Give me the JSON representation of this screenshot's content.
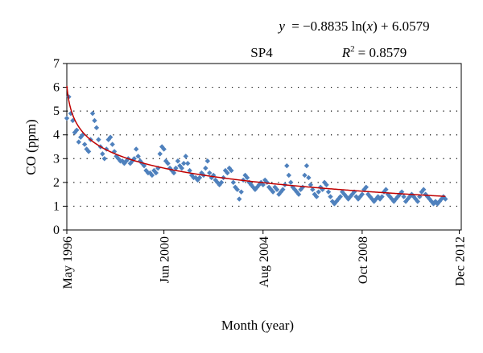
{
  "chart_data": {
    "type": "scatter",
    "station_label": "SP4",
    "equation": {
      "lhs": "y",
      "rhs_prefix": "= −0.8835 ln(",
      "variable": "x",
      "rhs_suffix": ") + 6.0579"
    },
    "r_squared": {
      "symbol": "R",
      "exponent": "2",
      "value_text": "= 0.8579"
    },
    "xlabel": "Month (year)",
    "ylabel": "CO (ppm)",
    "ylim": [
      0,
      7
    ],
    "yticks": [
      "0",
      "1",
      "2",
      "3",
      "4",
      "5",
      "6",
      "7"
    ],
    "xlim": [
      1,
      200
    ],
    "xtick_positions": [
      1,
      50,
      100,
      150,
      199
    ],
    "xticks": [
      "May 1996",
      "Jun 2000",
      "Aug 2004",
      "Oct 2008",
      "Dec 2012"
    ],
    "grid": "horizontal dotted",
    "point_color": "#4f81bd",
    "fit_color": "#c00000",
    "fit": {
      "a": -0.8835,
      "b": 6.0579,
      "form": "a*ln(x)+b"
    },
    "series": [
      {
        "values": [
          [
            1,
            4.7
          ],
          [
            2,
            5.6
          ],
          [
            3,
            4.9
          ],
          [
            4,
            4.6
          ],
          [
            5,
            4.1
          ],
          [
            6,
            4.2
          ],
          [
            7,
            3.7
          ],
          [
            8,
            3.9
          ],
          [
            9,
            4.0
          ],
          [
            10,
            3.6
          ],
          [
            11,
            3.4
          ],
          [
            12,
            3.3
          ],
          [
            13,
            3.8
          ],
          [
            14,
            4.9
          ],
          [
            15,
            4.6
          ],
          [
            16,
            4.3
          ],
          [
            17,
            3.8
          ],
          [
            18,
            3.5
          ],
          [
            19,
            3.2
          ],
          [
            20,
            3.0
          ],
          [
            21,
            3.4
          ],
          [
            22,
            3.8
          ],
          [
            23,
            3.9
          ],
          [
            24,
            3.6
          ],
          [
            25,
            3.3
          ],
          [
            26,
            3.1
          ],
          [
            27,
            3.0
          ],
          [
            28,
            2.9
          ],
          [
            29,
            2.9
          ],
          [
            30,
            2.8
          ],
          [
            31,
            2.9
          ],
          [
            32,
            3.0
          ],
          [
            33,
            2.8
          ],
          [
            34,
            2.9
          ],
          [
            35,
            3.0
          ],
          [
            36,
            3.4
          ],
          [
            37,
            3.1
          ],
          [
            38,
            2.9
          ],
          [
            39,
            2.8
          ],
          [
            40,
            2.7
          ],
          [
            41,
            2.5
          ],
          [
            42,
            2.4
          ],
          [
            43,
            2.4
          ],
          [
            44,
            2.3
          ],
          [
            45,
            2.5
          ],
          [
            46,
            2.4
          ],
          [
            47,
            2.6
          ],
          [
            48,
            3.2
          ],
          [
            49,
            3.5
          ],
          [
            50,
            3.4
          ],
          [
            51,
            2.9
          ],
          [
            52,
            2.8
          ],
          [
            53,
            2.6
          ],
          [
            54,
            2.5
          ],
          [
            55,
            2.4
          ],
          [
            56,
            2.6
          ],
          [
            57,
            2.9
          ],
          [
            58,
            2.7
          ],
          [
            59,
            2.6
          ],
          [
            60,
            2.8
          ],
          [
            61,
            3.1
          ],
          [
            62,
            2.8
          ],
          [
            63,
            2.5
          ],
          [
            64,
            2.3
          ],
          [
            65,
            2.2
          ],
          [
            66,
            2.2
          ],
          [
            67,
            2.1
          ],
          [
            68,
            2.2
          ],
          [
            69,
            2.4
          ],
          [
            70,
            2.3
          ],
          [
            71,
            2.6
          ],
          [
            72,
            2.9
          ],
          [
            73,
            2.4
          ],
          [
            74,
            2.2
          ],
          [
            75,
            2.3
          ],
          [
            76,
            2.1
          ],
          [
            77,
            2.0
          ],
          [
            78,
            1.9
          ],
          [
            79,
            2.0
          ],
          [
            80,
            2.2
          ],
          [
            81,
            2.5
          ],
          [
            82,
            2.4
          ],
          [
            83,
            2.6
          ],
          [
            84,
            2.5
          ],
          [
            85,
            2.0
          ],
          [
            86,
            1.8
          ],
          [
            87,
            1.7
          ],
          [
            88,
            1.3
          ],
          [
            89,
            1.6
          ],
          [
            90,
            2.1
          ],
          [
            91,
            2.3
          ],
          [
            92,
            2.2
          ],
          [
            93,
            2.0
          ],
          [
            94,
            1.9
          ],
          [
            95,
            1.8
          ],
          [
            96,
            1.7
          ],
          [
            97,
            1.8
          ],
          [
            98,
            1.9
          ],
          [
            99,
            2.0
          ],
          [
            100,
            1.9
          ],
          [
            101,
            2.1
          ],
          [
            102,
            2.0
          ],
          [
            103,
            1.8
          ],
          [
            104,
            1.7
          ],
          [
            105,
            1.6
          ],
          [
            106,
            1.8
          ],
          [
            107,
            1.7
          ],
          [
            108,
            1.5
          ],
          [
            109,
            1.6
          ],
          [
            110,
            1.7
          ],
          [
            111,
            1.9
          ],
          [
            112,
            2.7
          ],
          [
            113,
            2.3
          ],
          [
            114,
            2.0
          ],
          [
            115,
            1.8
          ],
          [
            116,
            1.7
          ],
          [
            117,
            1.6
          ],
          [
            118,
            1.5
          ],
          [
            119,
            1.7
          ],
          [
            120,
            1.8
          ],
          [
            121,
            2.3
          ],
          [
            122,
            2.7
          ],
          [
            123,
            2.2
          ],
          [
            124,
            1.9
          ],
          [
            125,
            1.7
          ],
          [
            126,
            1.5
          ],
          [
            127,
            1.4
          ],
          [
            128,
            1.6
          ],
          [
            129,
            1.8
          ],
          [
            130,
            1.7
          ],
          [
            131,
            2.0
          ],
          [
            132,
            1.9
          ],
          [
            133,
            1.6
          ],
          [
            134,
            1.4
          ],
          [
            135,
            1.2
          ],
          [
            136,
            1.1
          ],
          [
            137,
            1.2
          ],
          [
            138,
            1.3
          ],
          [
            139,
            1.4
          ],
          [
            140,
            1.6
          ],
          [
            141,
            1.5
          ],
          [
            142,
            1.4
          ],
          [
            143,
            1.3
          ],
          [
            144,
            1.4
          ],
          [
            145,
            1.5
          ],
          [
            146,
            1.6
          ],
          [
            147,
            1.4
          ],
          [
            148,
            1.3
          ],
          [
            149,
            1.4
          ],
          [
            150,
            1.5
          ],
          [
            151,
            1.7
          ],
          [
            152,
            1.8
          ],
          [
            153,
            1.5
          ],
          [
            154,
            1.4
          ],
          [
            155,
            1.3
          ],
          [
            156,
            1.2
          ],
          [
            157,
            1.3
          ],
          [
            158,
            1.4
          ],
          [
            159,
            1.3
          ],
          [
            160,
            1.4
          ],
          [
            161,
            1.6
          ],
          [
            162,
            1.7
          ],
          [
            163,
            1.5
          ],
          [
            164,
            1.4
          ],
          [
            165,
            1.3
          ],
          [
            166,
            1.2
          ],
          [
            167,
            1.3
          ],
          [
            168,
            1.4
          ],
          [
            169,
            1.5
          ],
          [
            170,
            1.6
          ],
          [
            171,
            1.4
          ],
          [
            172,
            1.2
          ],
          [
            173,
            1.3
          ],
          [
            174,
            1.4
          ],
          [
            175,
            1.5
          ],
          [
            176,
            1.4
          ],
          [
            177,
            1.3
          ],
          [
            178,
            1.2
          ],
          [
            179,
            1.4
          ],
          [
            180,
            1.6
          ],
          [
            181,
            1.7
          ],
          [
            182,
            1.5
          ],
          [
            183,
            1.4
          ],
          [
            184,
            1.3
          ],
          [
            185,
            1.2
          ],
          [
            186,
            1.1
          ],
          [
            187,
            1.2
          ],
          [
            188,
            1.1
          ],
          [
            189,
            1.2
          ],
          [
            190,
            1.3
          ],
          [
            191,
            1.4
          ],
          [
            192,
            1.3
          ]
        ]
      }
    ]
  }
}
